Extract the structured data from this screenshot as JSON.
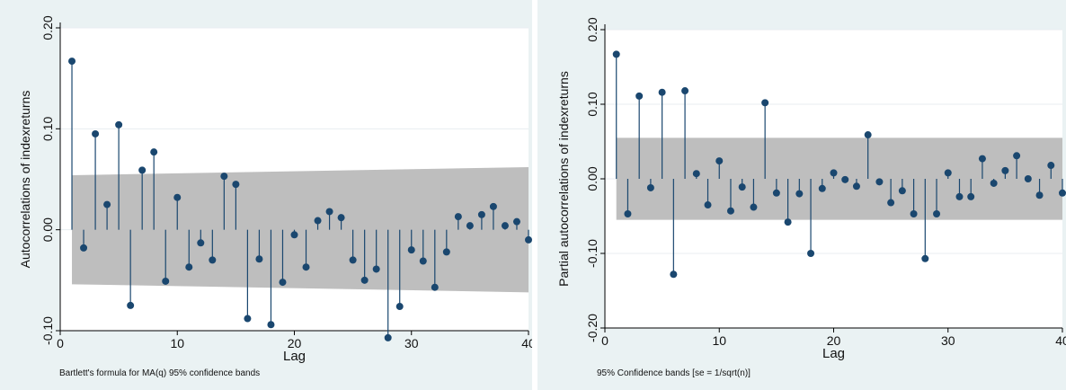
{
  "chart_data": [
    {
      "type": "stem",
      "ylabel": "Autocorrelations of indexreturns",
      "xlabel": "Lag",
      "note": "Bartlett's formula for MA(q) 95% confidence bands",
      "xlim": [
        0,
        40
      ],
      "ylim": [
        -0.1,
        0.2
      ],
      "xticks": [
        0,
        10,
        20,
        30,
        40
      ],
      "xtick_labels": [
        "0",
        "10",
        "20",
        "30",
        "40"
      ],
      "yticks": [
        -0.1,
        0,
        0.1,
        0.2
      ],
      "ytick_labels": [
        "-0.10",
        "0.00",
        "0.10",
        "0.20"
      ],
      "grid": true,
      "band": "bartlett",
      "band_lower": [
        -0.054,
        -0.062
      ],
      "band_upper": [
        0.054,
        0.062
      ],
      "lags": [
        1,
        2,
        3,
        4,
        5,
        6,
        7,
        8,
        9,
        10,
        11,
        12,
        13,
        14,
        15,
        16,
        17,
        18,
        19,
        20,
        21,
        22,
        23,
        24,
        25,
        26,
        27,
        28,
        29,
        30,
        31,
        32,
        33,
        34,
        35,
        36,
        37,
        38,
        39,
        40
      ],
      "values": [
        0.167,
        -0.018,
        0.095,
        0.025,
        0.104,
        -0.075,
        0.059,
        0.077,
        -0.051,
        0.032,
        -0.037,
        -0.013,
        -0.03,
        0.053,
        0.045,
        -0.088,
        -0.029,
        -0.094,
        -0.052,
        -0.005,
        -0.037,
        0.009,
        0.018,
        0.012,
        -0.03,
        -0.05,
        -0.039,
        -0.107,
        -0.076,
        -0.02,
        -0.031,
        -0.057,
        -0.022,
        0.013,
        0.004,
        0.015,
        0.023,
        0.004,
        0.008,
        -0.01
      ]
    },
    {
      "type": "stem",
      "ylabel": "Partial autocorrelations of indexreturns",
      "xlabel": "Lag",
      "note": "95% Confidence bands [se = 1/sqrt(n)]",
      "xlim": [
        0,
        40
      ],
      "ylim": [
        -0.2,
        0.2
      ],
      "xticks": [
        0,
        10,
        20,
        30,
        40
      ],
      "xtick_labels": [
        "0",
        "10",
        "20",
        "30",
        "40"
      ],
      "yticks": [
        -0.2,
        -0.1,
        0,
        0.1,
        0.2
      ],
      "ytick_labels": [
        "-0.20",
        "-0.10",
        "0.00",
        "0.10",
        "0.20"
      ],
      "grid": true,
      "band": "constant",
      "band_lower": [
        -0.055,
        -0.055
      ],
      "band_upper": [
        0.055,
        0.055
      ],
      "lags": [
        1,
        2,
        3,
        4,
        5,
        6,
        7,
        8,
        9,
        10,
        11,
        12,
        13,
        14,
        15,
        16,
        17,
        18,
        19,
        20,
        21,
        22,
        23,
        24,
        25,
        26,
        27,
        28,
        29,
        30,
        31,
        32,
        33,
        34,
        35,
        36,
        37,
        38,
        39,
        40
      ],
      "values": [
        0.167,
        -0.047,
        0.111,
        -0.012,
        0.116,
        -0.128,
        0.118,
        0.007,
        -0.035,
        0.024,
        -0.043,
        -0.011,
        -0.038,
        0.102,
        -0.019,
        -0.058,
        -0.02,
        -0.1,
        -0.013,
        0.008,
        -0.001,
        -0.01,
        0.059,
        -0.004,
        -0.032,
        -0.016,
        -0.047,
        -0.107,
        -0.047,
        0.008,
        -0.024,
        -0.024,
        0.027,
        -0.006,
        0.011,
        0.031,
        0.0,
        -0.022,
        0.018,
        -0.019
      ]
    }
  ]
}
